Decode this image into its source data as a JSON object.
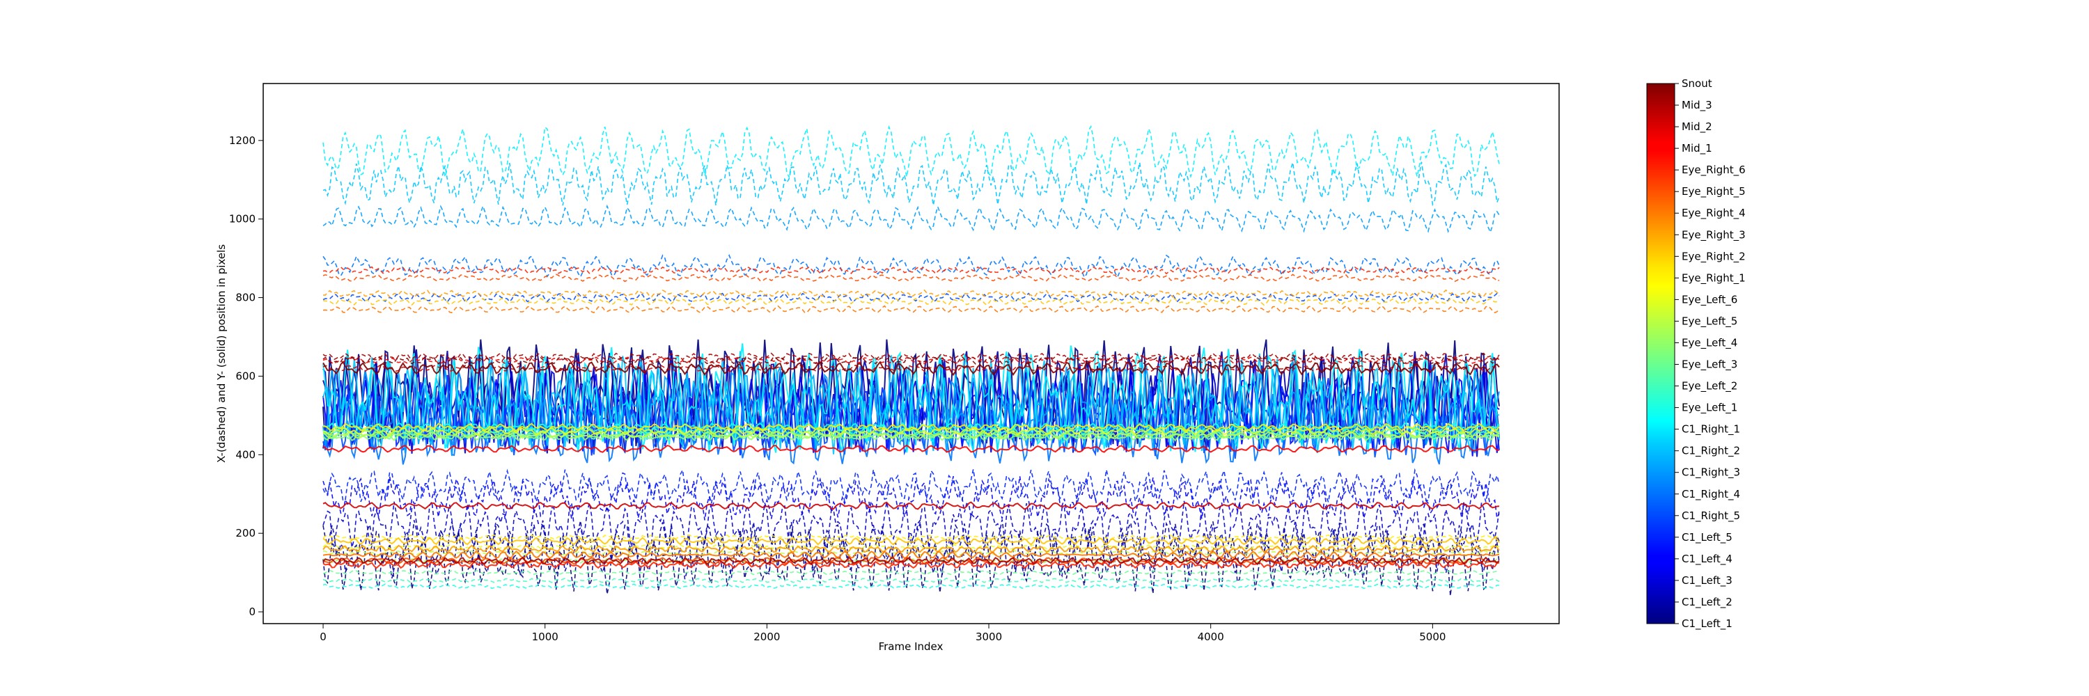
{
  "chart_data": {
    "type": "line",
    "title": "",
    "xlabel": "Frame Index",
    "ylabel": "X-(dashed) and Y- (solid) position in pixels",
    "xlim": [
      -270,
      5570
    ],
    "ylim": [
      -30,
      1345
    ],
    "x_ticks": [
      0,
      1000,
      2000,
      3000,
      4000,
      5000
    ],
    "y_ticks": [
      0,
      200,
      400,
      600,
      800,
      1000,
      1200
    ],
    "n_frames": 5300,
    "style_legend": {
      "dashed": "X",
      "solid": "Y"
    },
    "colorbar": {
      "colormap": "jet",
      "labels_bottom_to_top": [
        "C1_Left_1",
        "C1_Left_2",
        "C1_Left_3",
        "C1_Left_4",
        "C1_Left_5",
        "C1_Right_5",
        "C1_Right_4",
        "C1_Right_3",
        "C1_Right_2",
        "C1_Right_1",
        "Eye_Left_1",
        "Eye_Left_2",
        "Eye_Left_3",
        "Eye_Left_4",
        "Eye_Left_5",
        "Eye_Left_6",
        "Eye_Right_1",
        "Eye_Right_2",
        "Eye_Right_3",
        "Eye_Right_4",
        "Eye_Right_5",
        "Eye_Right_6",
        "Mid_1",
        "Mid_2",
        "Mid_3",
        "Snout"
      ]
    },
    "series": [
      {
        "name": "C1_Left_1",
        "x_mean": 130,
        "x_amp": 80,
        "y_mean": 560,
        "y_amp": 130
      },
      {
        "name": "C1_Left_2",
        "x_mean": 160,
        "x_amp": 70,
        "y_mean": 540,
        "y_amp": 120
      },
      {
        "name": "C1_Left_3",
        "x_mean": 220,
        "x_amp": 60,
        "y_mean": 520,
        "y_amp": 110
      },
      {
        "name": "C1_Left_4",
        "x_mean": 290,
        "x_amp": 50,
        "y_mean": 510,
        "y_amp": 100
      },
      {
        "name": "C1_Left_5",
        "x_mean": 320,
        "x_amp": 40,
        "y_mean": 500,
        "y_amp": 90
      },
      {
        "name": "C1_Right_5",
        "x_mean": 800,
        "x_amp": 10,
        "y_mean": 480,
        "y_amp": 80
      },
      {
        "name": "C1_Right_4",
        "x_mean": 880,
        "x_amp": 25,
        "y_mean": 470,
        "y_amp": 90
      },
      {
        "name": "C1_Right_3",
        "x_mean": 1000,
        "x_amp": 30,
        "y_mean": 520,
        "y_amp": 110
      },
      {
        "name": "C1_Right_2",
        "x_mean": 1090,
        "x_amp": 50,
        "y_mean": 530,
        "y_amp": 120
      },
      {
        "name": "C1_Right_1",
        "x_mean": 1170,
        "x_amp": 60,
        "y_mean": 540,
        "y_amp": 130
      },
      {
        "name": "Eye_Left_1",
        "x_mean": 65,
        "x_amp": 5,
        "y_mean": 470,
        "y_amp": 10
      },
      {
        "name": "Eye_Left_2",
        "x_mean": 80,
        "x_amp": 5,
        "y_mean": 460,
        "y_amp": 10
      },
      {
        "name": "Eye_Left_3",
        "x_mean": 100,
        "x_amp": 5,
        "y_mean": 450,
        "y_amp": 10
      },
      {
        "name": "Eye_Left_4",
        "x_mean": 130,
        "x_amp": 5,
        "y_mean": 445,
        "y_amp": 8
      },
      {
        "name": "Eye_Left_5",
        "x_mean": 150,
        "x_amp": 5,
        "y_mean": 450,
        "y_amp": 8
      },
      {
        "name": "Eye_Left_6",
        "x_mean": 165,
        "x_amp": 5,
        "y_mean": 460,
        "y_amp": 8
      },
      {
        "name": "Eye_Right_1",
        "x_mean": 190,
        "x_amp": 5,
        "y_mean": 470,
        "y_amp": 8
      },
      {
        "name": "Eye_Right_2",
        "x_mean": 790,
        "x_amp": 8,
        "y_mean": 180,
        "y_amp": 8
      },
      {
        "name": "Eye_Right_3",
        "x_mean": 810,
        "x_amp": 8,
        "y_mean": 160,
        "y_amp": 8
      },
      {
        "name": "Eye_Right_4",
        "x_mean": 770,
        "x_amp": 8,
        "y_mean": 145,
        "y_amp": 8
      },
      {
        "name": "Eye_Right_5",
        "x_mean": 850,
        "x_amp": 8,
        "y_mean": 130,
        "y_amp": 8
      },
      {
        "name": "Eye_Right_6",
        "x_mean": 870,
        "x_amp": 8,
        "y_mean": 120,
        "y_amp": 8
      },
      {
        "name": "Mid_1",
        "x_mean": 640,
        "x_amp": 8,
        "y_mean": 415,
        "y_amp": 8
      },
      {
        "name": "Mid_2",
        "x_mean": 620,
        "x_amp": 8,
        "y_mean": 270,
        "y_amp": 8
      },
      {
        "name": "Mid_3",
        "x_mean": 650,
        "x_amp": 8,
        "y_mean": 130,
        "y_amp": 8
      },
      {
        "name": "Snout",
        "x_mean": 640,
        "x_amp": 10,
        "y_mean": 620,
        "y_amp": 15
      }
    ]
  }
}
